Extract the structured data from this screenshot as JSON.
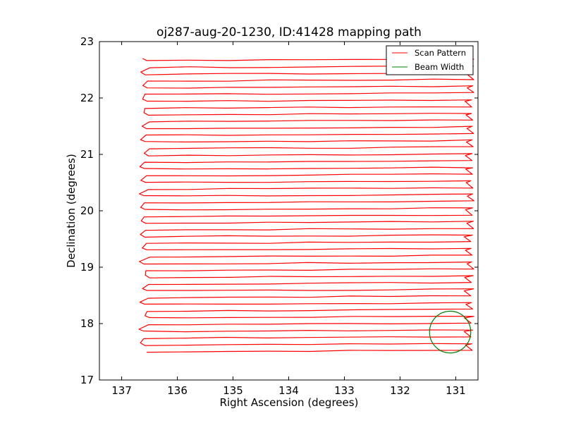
{
  "chart_data": {
    "type": "line",
    "title": "oj287-aug-20-1230, ID:41428 mapping path",
    "xlabel": "Right Ascension (degrees)",
    "ylabel": "Declination (degrees)",
    "xlim": [
      137.4,
      130.6
    ],
    "ylim": [
      17,
      23
    ],
    "x_inverted": true,
    "xticks": [
      "137",
      "136",
      "135",
      "134",
      "133",
      "132",
      "131"
    ],
    "yticks": [
      "17",
      "18",
      "19",
      "20",
      "21",
      "22",
      "23"
    ],
    "grid": false,
    "legend": {
      "placement": "top-right",
      "entries": [
        "Scan Pattern",
        "Beam Width"
      ]
    },
    "scan_pattern": {
      "name": "Scan Pattern",
      "color": "#ff0000",
      "ra_west": 136.55,
      "ra_east": 130.7,
      "dec_start": 17.5,
      "dec_end": 22.7,
      "rows": 44,
      "row_spacing": 0.12
    },
    "beam_width": {
      "name": "Beam Width",
      "color": "#008000",
      "center_ra": 131.1,
      "center_dec": 17.85,
      "radius_deg": 0.37
    }
  }
}
